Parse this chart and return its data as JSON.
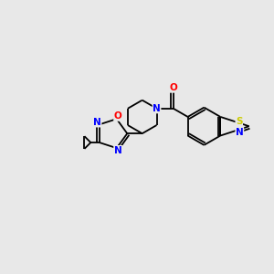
{
  "background_color": "#e8e8e8",
  "bond_color": "#000000",
  "atom_colors": {
    "N": "#0000ff",
    "O": "#ff0000",
    "S": "#cccc00",
    "C": "#000000"
  },
  "figsize": [
    3.0,
    3.0
  ],
  "dpi": 100,
  "xlim": [
    0,
    10
  ],
  "ylim": [
    0,
    10
  ]
}
